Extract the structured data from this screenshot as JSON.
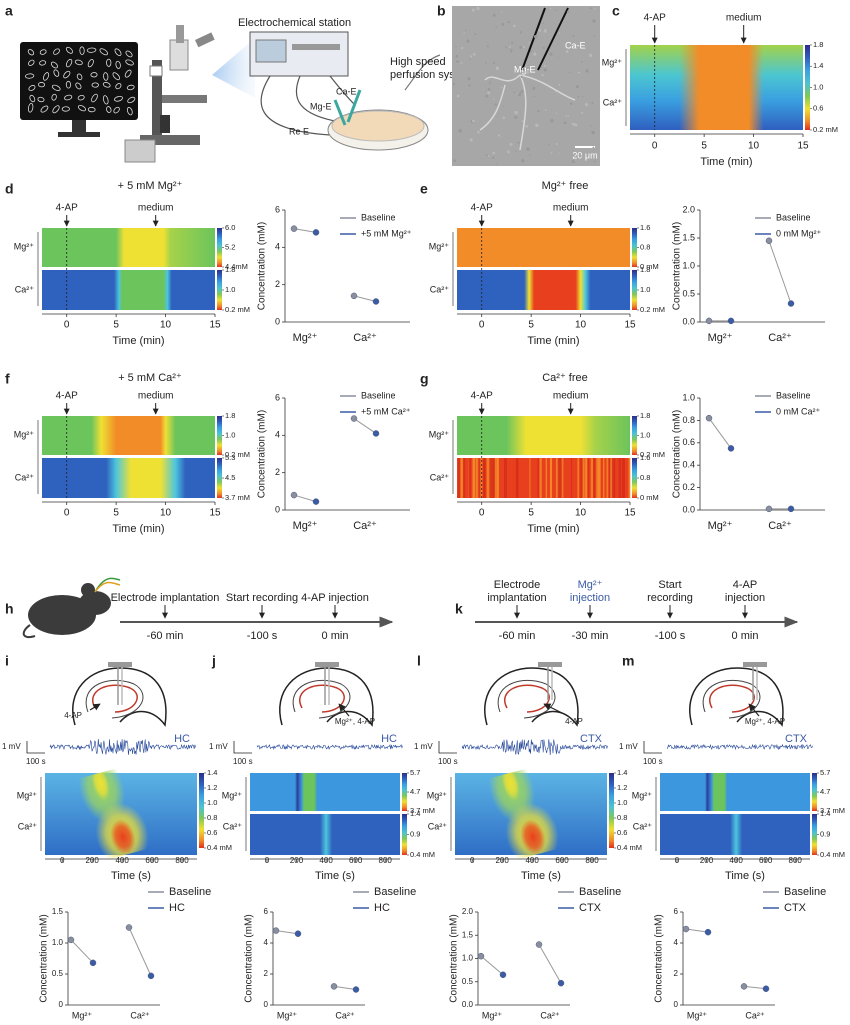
{
  "panels": {
    "a": {
      "label": "a",
      "station": "Electrochemical station",
      "perfusion": [
        "High speed",
        "perfusion system"
      ],
      "ca_e": "Ca-E",
      "mg_e": "Mg-E",
      "re_e": "Re E"
    },
    "b": {
      "label": "b",
      "mg_e": "Mg-E",
      "ca_e": "Ca-E",
      "scale": "20 μm"
    },
    "h": {
      "label": "h",
      "events": [
        {
          "lines": [
            "Electrode implantation"
          ],
          "time": "-60 min"
        },
        {
          "lines": [
            "Start recording"
          ],
          "time": "-100 s"
        },
        {
          "lines": [
            "4-AP injection"
          ],
          "time": "0 min"
        }
      ]
    },
    "k": {
      "label": "k",
      "events": [
        {
          "lines": [
            "Electrode",
            "implantation"
          ],
          "time": "-60 min"
        },
        {
          "lines": [
            "Mg²⁺",
            "injection"
          ],
          "time": "-30 min"
        },
        {
          "lines": [
            "Start",
            "recording"
          ],
          "time": "-100 s"
        },
        {
          "lines": [
            "4-AP",
            "injection"
          ],
          "time": "0 min"
        }
      ]
    },
    "i": {
      "label": "i",
      "injection": "4-AP",
      "region": "HC",
      "amplitude": "1 mV",
      "duration": "100 s"
    },
    "j": {
      "label": "j",
      "injection": "Mg²⁺, 4-AP",
      "region": "HC",
      "amplitude": "1 mV",
      "duration": "100 s"
    },
    "l": {
      "label": "l",
      "injection": "4-AP",
      "region": "CTX",
      "amplitude": "1 mV",
      "duration": "100 s"
    },
    "m": {
      "label": "m",
      "injection": "Mg²⁺, 4-AP",
      "region": "CTX",
      "amplitude": "1 mV",
      "duration": "100 s"
    }
  },
  "chart_data": [
    {
      "type": "heatmap",
      "label": "c",
      "rows": [
        "Mg²⁺",
        "Ca²⁺"
      ],
      "colorbars": [
        {
          "ylim": [
            0.2,
            1.8
          ],
          "yticks": [
            1.8,
            1.4,
            {
              "value": 1,
              "label": "1.0"
            },
            0.6,
            {
              "value": 0.2,
              "label": "0.2 mM"
            }
          ]
        }
      ],
      "xlim": [
        -2.5,
        15
      ],
      "xticks": [
        0,
        5,
        10,
        15
      ],
      "xlabel": "Time (min)",
      "annotations": [
        {
          "text": "4-AP",
          "x": 0
        },
        {
          "text": "medium",
          "x": 9
        }
      ]
    },
    {
      "type": "heatmap",
      "label": "d",
      "title": "+ 5 mM Mg²⁺",
      "rows": [
        "Mg²⁺",
        "Ca²⁺"
      ],
      "colorbars": [
        {
          "ylim": [
            4.4,
            6
          ],
          "yticks": [
            {
              "value": 6,
              "label": "6.0"
            },
            5.2,
            {
              "value": 4.4,
              "label": "4.4mM"
            }
          ]
        },
        {
          "ylim": [
            0.2,
            1.8
          ],
          "yticks": [
            1.8,
            {
              "value": 1,
              "label": "1.0"
            },
            {
              "value": 0.2,
              "label": "0.2 mM"
            }
          ]
        }
      ],
      "xlim": [
        -2.5,
        15
      ],
      "xticks": [
        0,
        5,
        10,
        15
      ],
      "xlabel": "Time (min)",
      "annotations": [
        {
          "text": "4-AP",
          "x": 0
        },
        {
          "text": "medium",
          "x": 9
        }
      ]
    },
    {
      "type": "dot",
      "ylabel": "Concentration (mM)",
      "ylim": [
        0,
        6
      ],
      "yticks": [
        0,
        2,
        4,
        6
      ],
      "categories": [
        "Mg²⁺",
        "Ca²⁺"
      ],
      "series": [
        {
          "name": "Baseline",
          "color": "#8a8f9e",
          "values": [
            5.0,
            1.4
          ]
        },
        {
          "name": "+5 mM Mg²⁺",
          "color": "#3b5ba5",
          "values": [
            4.8,
            1.1
          ]
        }
      ]
    },
    {
      "type": "heatmap",
      "label": "e",
      "title": "Mg²⁺ free",
      "rows": [
        "Mg²⁺",
        "Ca²⁺"
      ],
      "colorbars": [
        {
          "ylim": [
            0,
            1.6
          ],
          "yticks": [
            1.6,
            0.8,
            {
              "value": 0,
              "label": "0 mM"
            }
          ]
        },
        {
          "ylim": [
            0.2,
            1.8
          ],
          "yticks": [
            1.8,
            {
              "value": 1,
              "label": "1.0"
            },
            {
              "value": 0.2,
              "label": "0.2 mM"
            }
          ]
        }
      ],
      "xlim": [
        -2.5,
        15
      ],
      "xticks": [
        0,
        5,
        10,
        15
      ],
      "xlabel": "Time (min)",
      "annotations": [
        {
          "text": "4-AP",
          "x": 0
        },
        {
          "text": "medium",
          "x": 9
        }
      ]
    },
    {
      "type": "dot",
      "ylabel": "Concentration (mM)",
      "ylim": [
        0,
        2
      ],
      "yticks": [
        {
          "value": 0,
          "label": "0.0"
        },
        0.5,
        {
          "value": 1,
          "label": "1.0"
        },
        1.5,
        {
          "value": 2,
          "label": "2.0"
        }
      ],
      "categories": [
        "Mg²⁺",
        "Ca²⁺"
      ],
      "series": [
        {
          "name": "Baseline",
          "color": "#8a8f9e",
          "values": [
            0.02,
            1.45
          ]
        },
        {
          "name": "0 mM Mg²⁺",
          "color": "#3b5ba5",
          "values": [
            0.02,
            0.33
          ]
        }
      ]
    },
    {
      "type": "heatmap",
      "label": "f",
      "title": "+ 5 mM Ca²⁺",
      "rows": [
        "Mg²⁺",
        "Ca²⁺"
      ],
      "colorbars": [
        {
          "ylim": [
            0.2,
            1.8
          ],
          "yticks": [
            1.8,
            {
              "value": 1,
              "label": "1.0"
            },
            {
              "value": 0.2,
              "label": "0.2 mM"
            }
          ]
        },
        {
          "ylim": [
            3.7,
            5.3
          ],
          "yticks": [
            5.3,
            4.5,
            {
              "value": 3.7,
              "label": "3.7 mM"
            }
          ]
        }
      ],
      "xlim": [
        -2.5,
        15
      ],
      "xticks": [
        0,
        5,
        10,
        15
      ],
      "xlabel": "Time (min)",
      "annotations": [
        {
          "text": "4-AP",
          "x": 0
        },
        {
          "text": "medium",
          "x": 9
        }
      ]
    },
    {
      "type": "dot",
      "ylabel": "Concentration (mM)",
      "ylim": [
        0,
        6
      ],
      "yticks": [
        0,
        2,
        4,
        6
      ],
      "categories": [
        "Mg²⁺",
        "Ca²⁺"
      ],
      "series": [
        {
          "name": "Baseline",
          "color": "#8a8f9e",
          "values": [
            0.8,
            4.9
          ]
        },
        {
          "name": "+5 mM Ca²⁺",
          "color": "#3b5ba5",
          "values": [
            0.45,
            4.1
          ]
        }
      ]
    },
    {
      "type": "heatmap",
      "label": "g",
      "title": "Ca²⁺ free",
      "rows": [
        "Mg²⁺",
        "Ca²⁺"
      ],
      "colorbars": [
        {
          "ylim": [
            0.2,
            1.8
          ],
          "yticks": [
            1.8,
            {
              "value": 1,
              "label": "1.0"
            },
            {
              "value": 0.2,
              "label": "0.2 mM"
            }
          ]
        },
        {
          "ylim": [
            0,
            1.6
          ],
          "yticks": [
            1.6,
            0.8,
            {
              "value": 0,
              "label": "0 mM"
            }
          ]
        }
      ],
      "xlim": [
        -2.5,
        15
      ],
      "xticks": [
        0,
        5,
        10,
        15
      ],
      "xlabel": "Time (min)",
      "annotations": [
        {
          "text": "4-AP",
          "x": 0
        },
        {
          "text": "medium",
          "x": 9
        }
      ]
    },
    {
      "type": "dot",
      "ylabel": "Concentration (mM)",
      "ylim": [
        0,
        1
      ],
      "yticks": [
        {
          "value": 0,
          "label": "0.0"
        },
        0.2,
        0.4,
        0.6,
        0.8,
        {
          "value": 1,
          "label": "1.0"
        }
      ],
      "categories": [
        "Mg²⁺",
        "Ca²⁺"
      ],
      "series": [
        {
          "name": "Baseline",
          "color": "#8a8f9e",
          "values": [
            0.82,
            0.01
          ]
        },
        {
          "name": "0 mM Ca²⁺",
          "color": "#3b5ba5",
          "values": [
            0.55,
            0.01
          ]
        }
      ]
    },
    {
      "type": "heatmap",
      "rows": [
        "Mg²⁺",
        "Ca²⁺"
      ],
      "colorbars": [
        {
          "ylim": [
            0.4,
            1.4
          ],
          "yticks": [
            1.4,
            1.2,
            {
              "value": 1,
              "label": "1.0"
            },
            0.8,
            0.6,
            {
              "value": 0.4,
              "label": "0.4 mM"
            }
          ]
        }
      ],
      "xlim": [
        -115,
        900
      ],
      "xticks": [
        0,
        200,
        400,
        600,
        800
      ],
      "xlabel": "Time (s)"
    },
    {
      "type": "dot",
      "ylabel": "Concentration (mM)",
      "ylim": [
        0,
        1.5
      ],
      "yticks": [
        0,
        0.5,
        {
          "value": 1,
          "label": "1.0"
        },
        1.5
      ],
      "categories": [
        "Mg²⁺",
        "Ca²⁺"
      ],
      "series": [
        {
          "name": "Baseline",
          "color": "#8a8f9e",
          "values": [
            1.05,
            1.25
          ]
        },
        {
          "name": "HC",
          "color": "#3b5ba5",
          "values": [
            0.68,
            0.47
          ]
        }
      ]
    },
    {
      "type": "heatmap",
      "rows": [
        "Mg²⁺",
        "Ca²⁺"
      ],
      "colorbars": [
        {
          "ylim": [
            3.7,
            5.7
          ],
          "yticks": [
            5.7,
            4.7,
            {
              "value": 3.7,
              "label": "3.7 mM"
            }
          ]
        },
        {
          "ylim": [
            0.4,
            1.4
          ],
          "yticks": [
            1.4,
            0.9,
            {
              "value": 0.4,
              "label": "0.4 mM"
            }
          ]
        }
      ],
      "xlim": [
        -115,
        900
      ],
      "xticks": [
        0,
        200,
        400,
        600,
        800
      ],
      "xlabel": "Time (s)"
    },
    {
      "type": "dot",
      "ylabel": "Concentration (mM)",
      "ylim": [
        0,
        6
      ],
      "yticks": [
        0,
        2,
        4,
        6
      ],
      "categories": [
        "Mg²⁺",
        "Ca²⁺"
      ],
      "series": [
        {
          "name": "Baseline",
          "color": "#8a8f9e",
          "values": [
            4.8,
            1.2
          ]
        },
        {
          "name": "HC",
          "color": "#3b5ba5",
          "values": [
            4.6,
            1.0
          ]
        }
      ]
    },
    {
      "type": "heatmap",
      "rows": [
        "Mg²⁺",
        "Ca²⁺"
      ],
      "colorbars": [
        {
          "ylim": [
            0.4,
            1.4
          ],
          "yticks": [
            1.4,
            1.2,
            {
              "value": 1,
              "label": "1.0"
            },
            0.8,
            0.6,
            {
              "value": 0.4,
              "label": "0.4 mM"
            }
          ]
        }
      ],
      "xlim": [
        -115,
        900
      ],
      "xticks": [
        0,
        200,
        400,
        600,
        800
      ],
      "xlabel": "Time (s)"
    },
    {
      "type": "dot",
      "ylabel": "Concentration (mM)",
      "ylim": [
        0,
        2
      ],
      "yticks": [
        {
          "value": 0,
          "label": "0.0"
        },
        0.5,
        {
          "value": 1,
          "label": "1.0"
        },
        1.5,
        {
          "value": 2,
          "label": "2.0"
        }
      ],
      "categories": [
        "Mg²⁺",
        "Ca²⁺"
      ],
      "series": [
        {
          "name": "Baseline",
          "color": "#8a8f9e",
          "values": [
            1.05,
            1.3
          ]
        },
        {
          "name": "CTX",
          "color": "#3b5ba5",
          "values": [
            0.65,
            0.47
          ]
        }
      ]
    },
    {
      "type": "heatmap",
      "rows": [
        "Mg²⁺",
        "Ca²⁺"
      ],
      "colorbars": [
        {
          "ylim": [
            3.7,
            5.7
          ],
          "yticks": [
            5.7,
            4.7,
            {
              "value": 3.7,
              "label": "3.7 mM"
            }
          ]
        },
        {
          "ylim": [
            0.4,
            1.4
          ],
          "yticks": [
            1.4,
            0.9,
            {
              "value": 0.4,
              "label": "0.4 mM"
            }
          ]
        }
      ],
      "xlim": [
        -115,
        900
      ],
      "xticks": [
        0,
        200,
        400,
        600,
        800
      ],
      "xlabel": "Time (s)"
    },
    {
      "type": "dot",
      "ylabel": "Concentration (mM)",
      "ylim": [
        0,
        6
      ],
      "yticks": [
        0,
        2,
        4,
        6
      ],
      "categories": [
        "Mg²⁺",
        "Ca²⁺"
      ],
      "series": [
        {
          "name": "Baseline",
          "color": "#8a8f9e",
          "values": [
            4.9,
            1.2
          ]
        },
        {
          "name": "CTX",
          "color": "#3b5ba5",
          "values": [
            4.7,
            1.05
          ]
        }
      ]
    }
  ]
}
